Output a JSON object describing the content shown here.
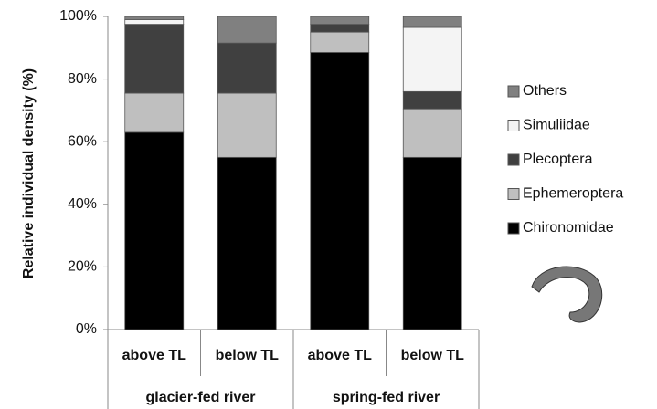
{
  "chart_data": {
    "type": "stacked-bar",
    "y_label": "Relative individual density (%)",
    "categories": [
      "above TL",
      "below TL",
      "above TL",
      "below TL"
    ],
    "groups": [
      "glacier-fed river",
      "spring-fed river"
    ],
    "series": [
      {
        "name": "Chironomidae",
        "color": "#000000",
        "values": [
          63,
          55,
          88.5,
          55
        ]
      },
      {
        "name": "Ephemeroptera",
        "color": "#bfbfbf",
        "values": [
          12.5,
          20.5,
          6.5,
          15.5
        ]
      },
      {
        "name": "Plecoptera",
        "color": "#404040",
        "values": [
          22,
          16,
          2.5,
          5.5
        ]
      },
      {
        "name": "Simuliidae",
        "color": "#f4f4f4",
        "values": [
          1.5,
          0,
          0,
          20.5
        ]
      },
      {
        "name": "Others",
        "color": "#808080",
        "values": [
          1,
          8.5,
          2.5,
          3.5
        ]
      }
    ],
    "ylim": [
      0,
      100
    ],
    "yticks": [
      {
        "value": 0,
        "label": "0%"
      },
      {
        "value": 20,
        "label": "20%"
      },
      {
        "value": 40,
        "label": "40%"
      },
      {
        "value": 60,
        "label": "60%"
      },
      {
        "value": 80,
        "label": "80%"
      },
      {
        "value": 100,
        "label": "100%"
      }
    ]
  }
}
